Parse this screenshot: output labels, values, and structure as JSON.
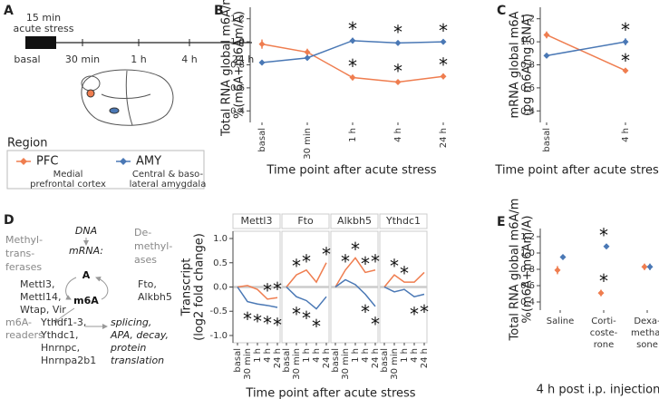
{
  "panel_labels": [
    "A",
    "B",
    "C",
    "D",
    "E"
  ],
  "timeline": {
    "stress": [
      "15 min",
      "acute stress"
    ],
    "points": [
      "basal",
      "30 min",
      "1 h",
      "4 h",
      "24 h"
    ]
  },
  "legend": {
    "title": "Region",
    "descriptions": [
      [
        "Medial",
        "prefrontal cortex"
      ],
      [
        "Central & baso-",
        "lateral amygdala"
      ]
    ]
  },
  "pathway": {
    "dna": "DNA",
    "mrna": "mRNA:",
    "base": "A",
    "modified": "m6A",
    "writers": {
      "label": [
        "Methyl-",
        "trans-",
        "ferases"
      ],
      "genes": [
        "Mettl3,",
        "Mettl14,",
        "Wtap, Vir"
      ]
    },
    "erasers": {
      "label": [
        "De-",
        "methyl-",
        "ases"
      ],
      "genes": [
        "Fto,",
        "Alkbh5"
      ]
    },
    "readers": {
      "label": [
        "m6A-",
        "readers"
      ],
      "genes": [
        "Ythdf1-3,",
        "Ythdc1,",
        "Hnrnpc,",
        "Hnrnpa2b1"
      ]
    },
    "functions": [
      "splicing,",
      "APA, decay,",
      "protein",
      "translation"
    ]
  },
  "chart_data": [
    {
      "type": "line",
      "ylabel": [
        "Total RNA global m6A/m",
        "%(m6A+m6Am/A)"
      ],
      "xlabel": "Time point after acute stress",
      "categories": [
        "basal",
        "30 min",
        "1 h",
        "4 h",
        "24 h"
      ],
      "ylim": [
        0.3,
        1.3
      ],
      "yticks": [
        0.4,
        0.6,
        0.8,
        {
          "value": 1,
          "label": "1.0"
        },
        1.2
      ],
      "series": [
        {
          "name": "PFC",
          "color": "#ef7d4f",
          "values": [
            0.98,
            0.91,
            0.69,
            0.65,
            0.7
          ],
          "errors": [
            0.04,
            0.03,
            0.025,
            0.02,
            0.025
          ],
          "significance": [
            null,
            null,
            "*",
            "*",
            "*"
          ]
        },
        {
          "name": "AMY",
          "color": "#4a78b5",
          "values": [
            0.82,
            0.86,
            1.01,
            0.99,
            1.0
          ],
          "errors": [
            0.02,
            0.02,
            0.025,
            0.02,
            0.02
          ],
          "significance": [
            null,
            null,
            "*",
            "*",
            "*"
          ]
        }
      ]
    },
    {
      "type": "line",
      "ylabel": [
        "mRNA global m6A",
        "(pg m6A/ng RNA)"
      ],
      "xlabel": "Time point after acute stress",
      "categories": [
        "basal",
        "4 h"
      ],
      "ylim": [
        0.3,
        1.3
      ],
      "yticks": [
        0.4,
        0.6,
        0.8,
        {
          "value": 1,
          "label": "1.0"
        },
        1.2
      ],
      "series": [
        {
          "name": "PFC",
          "color": "#ef7d4f",
          "values": [
            1.06,
            0.75
          ],
          "errors": [
            0.03,
            0.01
          ],
          "significance": [
            null,
            "*"
          ]
        },
        {
          "name": "AMY",
          "color": "#4a78b5",
          "values": [
            0.88,
            1.0
          ],
          "errors": [
            0.01,
            0.03
          ],
          "significance": [
            null,
            "*"
          ]
        }
      ]
    },
    {
      "type": "facet_line",
      "ylabel": [
        "Transcript",
        "(log2 fold change)"
      ],
      "xlabel": "Time point after acute stress",
      "categories": [
        "basal",
        "30 min",
        "1 h",
        "4 h",
        "24 h"
      ],
      "ylim": [
        -1.15,
        1.15
      ],
      "yticks": [
        {
          "value": -1,
          "label": "-1.0"
        },
        -0.5,
        {
          "value": 0,
          "label": "0.0"
        },
        0.5,
        {
          "value": 1,
          "label": "1.0"
        }
      ],
      "facets": [
        {
          "title": "Mettl3",
          "series": [
            {
              "name": "PFC",
              "color": "#ef7d4f",
              "values": [
                0,
                0.03,
                -0.05,
                -0.25,
                -0.22
              ],
              "significance": [
                null,
                null,
                null,
                "*",
                "*"
              ]
            },
            {
              "name": "AMY",
              "color": "#4a78b5",
              "values": [
                0,
                -0.3,
                -0.35,
                -0.38,
                -0.42
              ],
              "significance": [
                null,
                "*",
                "*",
                "*",
                "*"
              ]
            }
          ]
        },
        {
          "title": "Fto",
          "series": [
            {
              "name": "PFC",
              "color": "#ef7d4f",
              "values": [
                0,
                0.25,
                0.35,
                0.1,
                0.5
              ],
              "significance": [
                null,
                "*",
                "*",
                null,
                "*"
              ]
            },
            {
              "name": "AMY",
              "color": "#4a78b5",
              "values": [
                0,
                -0.2,
                -0.28,
                -0.45,
                -0.2
              ],
              "significance": [
                null,
                "*",
                "*",
                "*",
                null
              ]
            }
          ]
        },
        {
          "title": "Alkbh5",
          "series": [
            {
              "name": "PFC",
              "color": "#ef7d4f",
              "values": [
                0,
                0.35,
                0.6,
                0.3,
                0.35
              ],
              "significance": [
                null,
                "*",
                "*",
                "*",
                "*"
              ]
            },
            {
              "name": "AMY",
              "color": "#4a78b5",
              "values": [
                0,
                0.15,
                0.05,
                -0.15,
                -0.4
              ],
              "significance": [
                null,
                null,
                null,
                "*",
                "*"
              ]
            }
          ]
        },
        {
          "title": "Ythdc1",
          "series": [
            {
              "name": "PFC",
              "color": "#ef7d4f",
              "values": [
                0,
                0.25,
                0.1,
                0.1,
                0.3
              ],
              "significance": [
                null,
                "*",
                "*",
                null,
                null
              ]
            },
            {
              "name": "AMY",
              "color": "#4a78b5",
              "values": [
                0,
                -0.1,
                -0.05,
                -0.2,
                -0.15
              ],
              "significance": [
                null,
                null,
                null,
                "*",
                "*"
              ]
            }
          ]
        }
      ]
    },
    {
      "type": "point",
      "ylabel": [
        "Total RNA global m6A/m",
        "%(m6A+m6Am/A)"
      ],
      "xlabel": "4 h post i.p. injection",
      "categories": [
        [
          "Saline"
        ],
        [
          "Corti-",
          "coste-",
          "rone"
        ],
        [
          "Dexa-",
          "metha-",
          "sone"
        ]
      ],
      "ylim": [
        0.3,
        1.3
      ],
      "yticks": [
        0.4,
        0.6,
        0.8,
        {
          "value": 1,
          "label": "1.0"
        },
        1.2
      ],
      "series": [
        {
          "name": "PFC",
          "color": "#ef7d4f",
          "values": [
            0.79,
            0.51,
            0.83
          ],
          "errors": [
            0.05,
            0.04,
            0.04
          ],
          "significance": [
            null,
            "*",
            null
          ]
        },
        {
          "name": "AMY",
          "color": "#4a78b5",
          "values": [
            0.95,
            1.08,
            0.83
          ],
          "errors": [
            0.03,
            0.03,
            0.04
          ],
          "significance": [
            null,
            "*",
            null
          ]
        }
      ]
    }
  ]
}
